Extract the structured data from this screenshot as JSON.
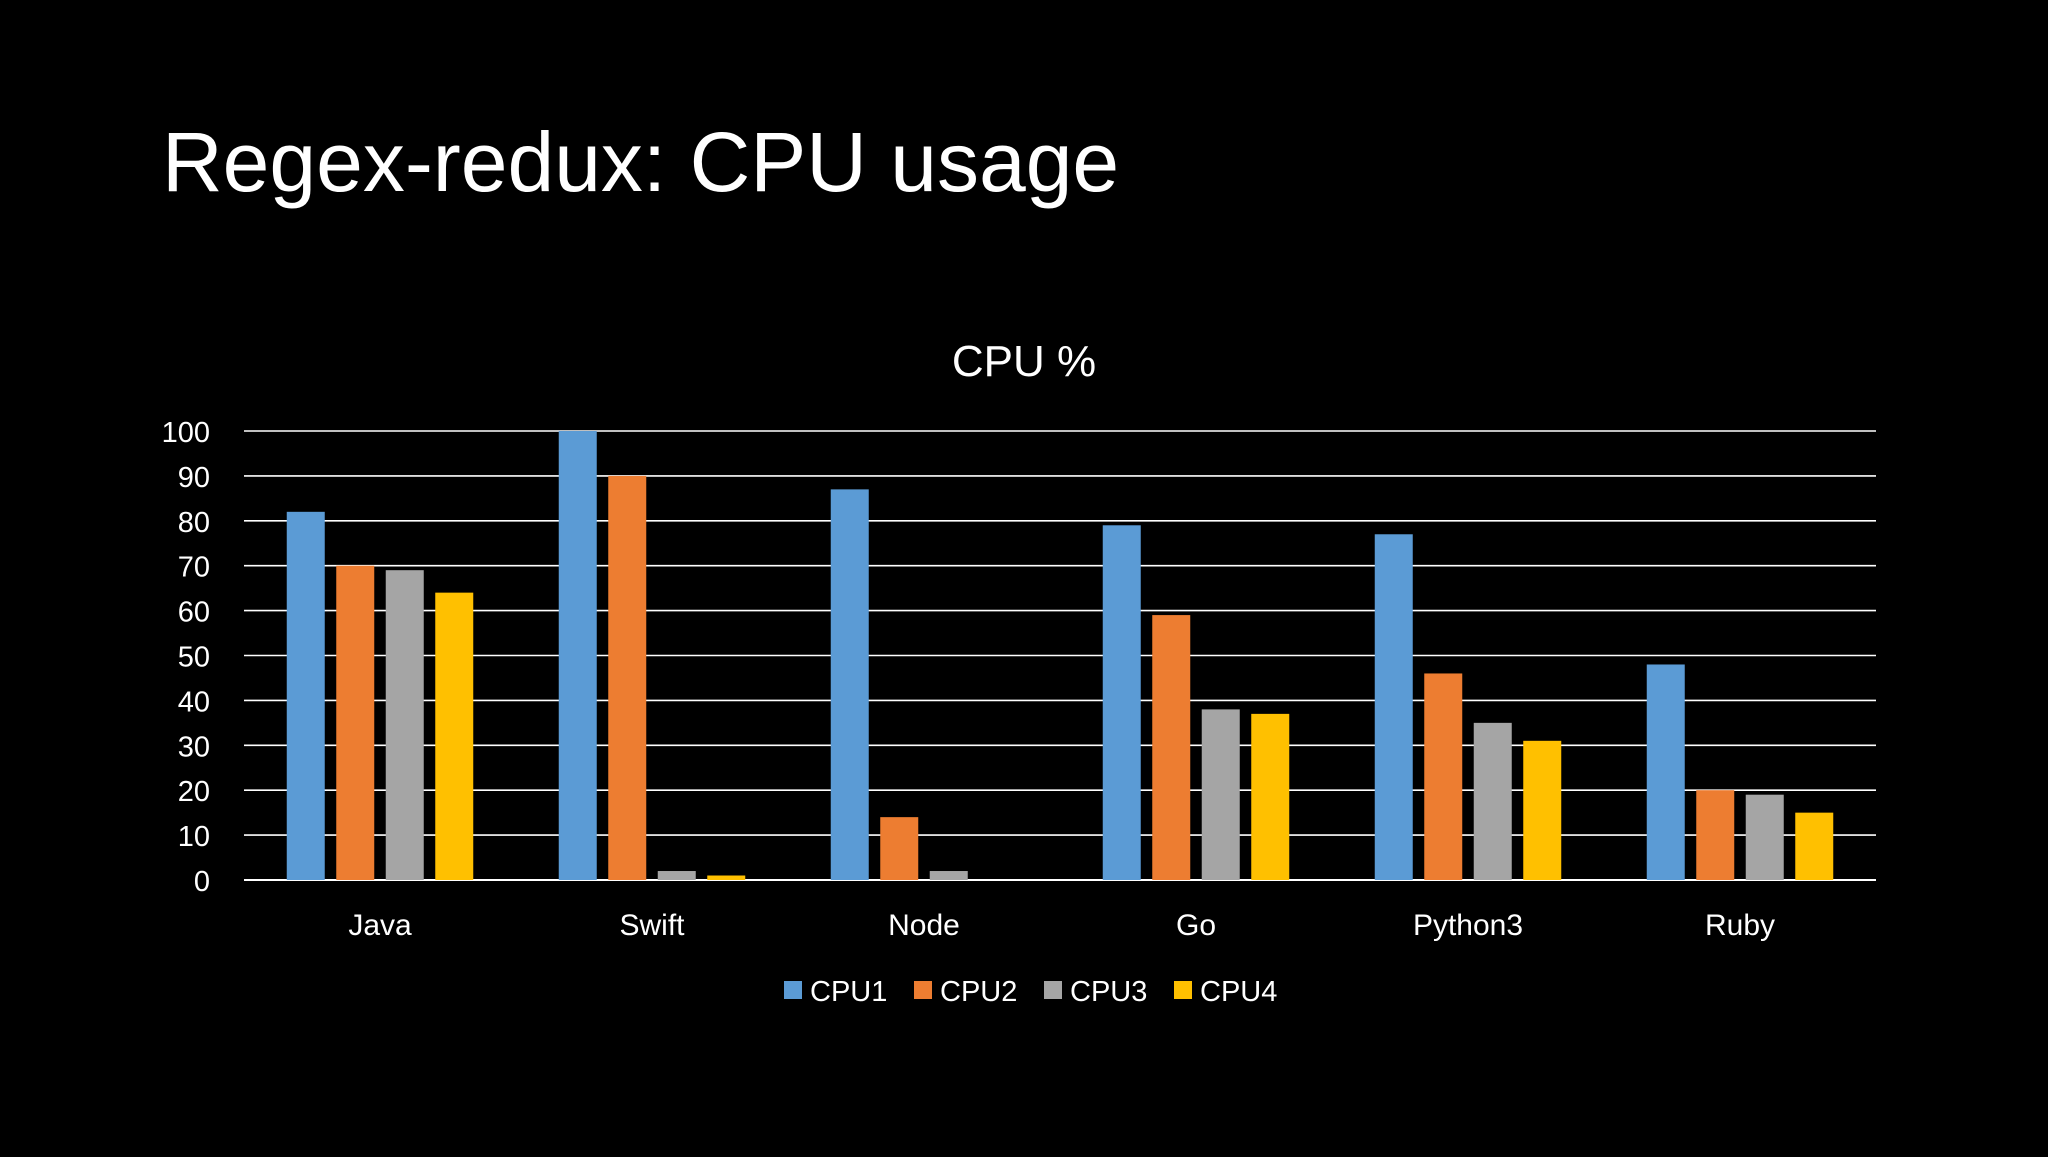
{
  "slide": {
    "title": "Regex-redux: CPU usage"
  },
  "chart_data": {
    "type": "bar",
    "title": "CPU %",
    "xlabel": "",
    "ylabel": "",
    "ylim": [
      0,
      100
    ],
    "yticks": [
      0,
      10,
      20,
      30,
      40,
      50,
      60,
      70,
      80,
      90,
      100
    ],
    "grid": true,
    "legend_position": "bottom",
    "categories": [
      "Java",
      "Swift",
      "Node",
      "Go",
      "Python3",
      "Ruby"
    ],
    "series": [
      {
        "name": "CPU1",
        "color": "#5B9BD5",
        "values": [
          82,
          100,
          87,
          79,
          77,
          48
        ]
      },
      {
        "name": "CPU2",
        "color": "#ED7D31",
        "values": [
          70,
          90,
          14,
          59,
          46,
          20
        ]
      },
      {
        "name": "CPU3",
        "color": "#A5A5A5",
        "values": [
          69,
          2,
          2,
          38,
          35,
          19
        ]
      },
      {
        "name": "CPU4",
        "color": "#FFC000",
        "values": [
          64,
          1,
          0,
          37,
          31,
          15
        ]
      }
    ]
  }
}
